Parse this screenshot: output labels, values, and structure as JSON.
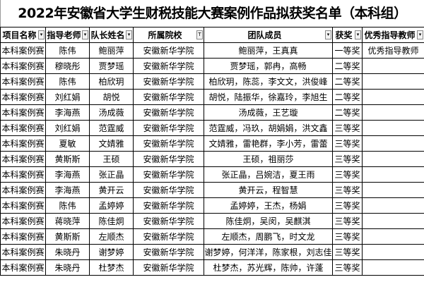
{
  "title": "2022年安徽省大学生财税技能大赛案例作品拟获奖名单（本科组）",
  "headers": [
    "项目名称",
    "指导老师",
    "队长姓名",
    "所属院校",
    "团队成员",
    "获奖",
    "优秀指导教师"
  ],
  "filter_icons": [
    "dropdown-icon",
    "dropdown-icon",
    "dropdown-icon",
    "filter-active-icon",
    "dropdown-icon",
    "dropdown-icon",
    "dropdown-icon"
  ],
  "rows": [
    [
      "本科案例赛",
      "陈伟",
      "鲍丽萍",
      "安徽新华学院",
      "鲍丽萍，王真真",
      "一等奖",
      "优秀指导教师"
    ],
    [
      "本科案例赛",
      "穆晓彤",
      "贾梦瑶",
      "安徽新华学院",
      "贾梦瑶，郭冉，高畅",
      "二等奖",
      ""
    ],
    [
      "本科案例赛",
      "陈伟",
      "柏欣玥",
      "安徽新华学院",
      "柏欣玥，陈蕊，李文文，洪俊峰",
      "二等奖",
      ""
    ],
    [
      "本科案例赛",
      "刘红娟",
      "胡悦",
      "安徽新华学院",
      "胡悦，陆振华，徐嘉玲，李旭生",
      "二等奖",
      ""
    ],
    [
      "本科案例赛",
      "李海燕",
      "汤成薇",
      "安徽新华学院",
      "汤成薇，王艺璇",
      "二等奖",
      ""
    ],
    [
      "本科案例赛",
      "刘红娟",
      "范霆威",
      "安徽新华学院",
      "范霆威，冯玖，胡娟娟，洪文鑫",
      "三等奖",
      ""
    ],
    [
      "本科案例赛",
      "夏敏",
      "文婧雅",
      "安徽新华学院",
      "文婧雅，雷艳群，李小芳，雷蕾",
      "三等奖",
      ""
    ],
    [
      "本科案例赛",
      "黄斯斯",
      "王硕",
      "安徽新华学院",
      "王硕，祖丽莎",
      "三等奖",
      ""
    ],
    [
      "本科案例赛",
      "李海燕",
      "张正晶",
      "安徽新华学院",
      "张正晶，吕婉洁，夏王雨",
      "三等奖",
      ""
    ],
    [
      "本科案例赛",
      "李海燕",
      "黄开云",
      "安徽新华学院",
      "黄开云，程智慧",
      "三等奖",
      ""
    ],
    [
      "本科案例赛",
      "陈伟",
      "孟婷婷",
      "安徽新华学院",
      "孟婷婷，王杰，杨娟",
      "三等奖",
      ""
    ],
    [
      "本科案例赛",
      "蒋晓萍",
      "陈佳炯",
      "安徽新华学院",
      "陈佳炯，吴闵，吴麒淇",
      "三等奖",
      ""
    ],
    [
      "本科案例赛",
      "黄斯斯",
      "左顺杰",
      "安徽新华学院",
      "左顺杰，周鹏飞，时文龙",
      "三等奖",
      ""
    ],
    [
      "本科案例赛",
      "朱晓丹",
      "谢梦婷",
      "安徽新华学院",
      "谢梦婷，何洋洋，陈家根，刘志佳",
      "三等奖",
      ""
    ],
    [
      "本科案例赛",
      "朱晓丹",
      "杜梦杰",
      "安徽新华学院",
      "杜梦杰，苏光辉，陈帅，许蓬",
      "三等奖",
      ""
    ]
  ]
}
